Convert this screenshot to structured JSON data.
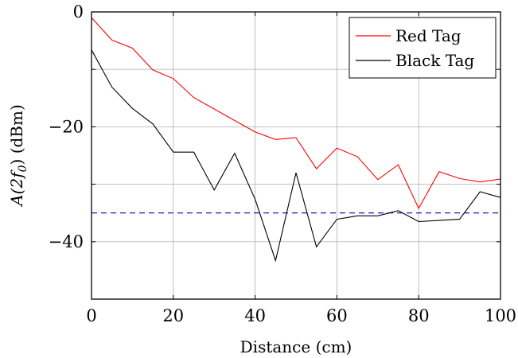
{
  "chart_data": {
    "type": "line",
    "xlabel": "Distance (cm)",
    "ylabel_prefix": "A(2f",
    "ylabel_sub": "0",
    "ylabel_suffix": ") (dBm)",
    "xlim": [
      0,
      100
    ],
    "ylim": [
      -50,
      0
    ],
    "xticks": [
      0,
      20,
      40,
      60,
      80,
      100
    ],
    "yticks": [
      0,
      -20,
      -40
    ],
    "ytick_labels": [
      "0",
      "−20",
      "−40"
    ],
    "grid": true,
    "legend_position": "top-right",
    "x": [
      0,
      5,
      10,
      15,
      20,
      25,
      30,
      35,
      40,
      45,
      50,
      55,
      60,
      65,
      70,
      75,
      80,
      85,
      90,
      95,
      100
    ],
    "series": [
      {
        "name": "Red Tag",
        "color": "#ff0000",
        "values": [
          -1.0,
          -4.9,
          -6.3,
          -10.1,
          -11.6,
          -14.9,
          -16.9,
          -18.9,
          -20.9,
          -22.2,
          -21.9,
          -27.3,
          -23.7,
          -25.2,
          -29.2,
          -26.6,
          -34.2,
          -27.8,
          -29.0,
          -29.6,
          -29.1
        ]
      },
      {
        "name": "Black Tag",
        "color": "#000000",
        "values": [
          -6.6,
          -13.1,
          -16.8,
          -19.5,
          -24.4,
          -24.4,
          -31.0,
          -24.6,
          -32.6,
          -43.3,
          -28.0,
          -40.9,
          -36.1,
          -35.5,
          -35.5,
          -34.6,
          -36.5,
          -36.3,
          -36.1,
          -31.3,
          -32.3
        ]
      }
    ],
    "reference_line": {
      "y": -35,
      "color": "#0000b0",
      "style": "dashed"
    }
  }
}
